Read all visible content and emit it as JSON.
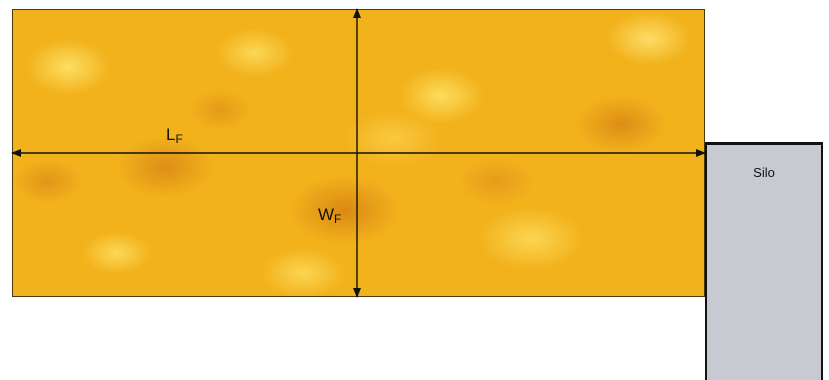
{
  "diagram": {
    "length_label": {
      "main": "L",
      "sub": "F"
    },
    "width_label": {
      "main": "W",
      "sub": "F"
    },
    "silo_label": "Silo"
  },
  "colors": {
    "field": "#f2b21c",
    "silo_fill": "#c8cad2",
    "line": "#111111"
  }
}
